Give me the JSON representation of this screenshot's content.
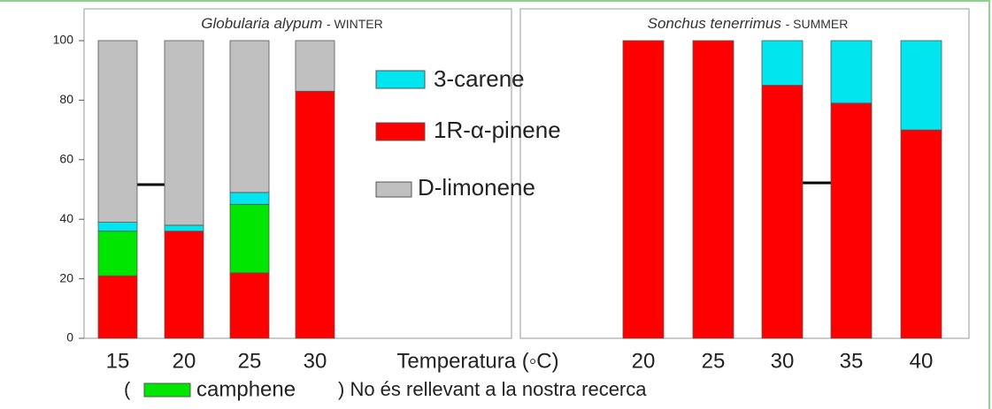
{
  "chart_data": [
    {
      "type": "stacked_bar",
      "title_italic": "Globularia alypum",
      "title": "- WINTER",
      "categories": [
        "15",
        "20",
        "25",
        "30"
      ],
      "xlabel": "Temperatura (◦C)",
      "series": [
        {
          "name": "1R-α-pinene",
          "color": "#ff0000",
          "values": [
            21,
            36,
            22,
            83
          ]
        },
        {
          "name": "camphene",
          "color": "#00e600",
          "values": [
            15,
            0,
            23,
            0
          ]
        },
        {
          "name": "3-carene",
          "color": "#00e5ee",
          "values": [
            3,
            2,
            4,
            0
          ]
        },
        {
          "name": "D-limonene",
          "color": "#c0c0c0",
          "values": [
            61,
            62,
            51,
            17
          ]
        }
      ],
      "ylim": [
        0,
        100
      ],
      "yticks": [
        0,
        20,
        40,
        60,
        80,
        100
      ],
      "note": {
        "before": "(",
        "after": ") No és rellevant a la nostra recerca"
      }
    },
    {
      "type": "stacked_bar",
      "title_italic": "Sonchus tenerrimus",
      "title": "- SUMMER",
      "categories": [
        "20",
        "25",
        "30",
        "35",
        "40"
      ],
      "series": [
        {
          "color": "#ff0000",
          "values": [
            100,
            100,
            85,
            79,
            70
          ]
        },
        {
          "color": "#00e5ee",
          "values": [
            0,
            0,
            15,
            21,
            30
          ]
        }
      ],
      "ylim": [
        0,
        100
      ]
    }
  ]
}
